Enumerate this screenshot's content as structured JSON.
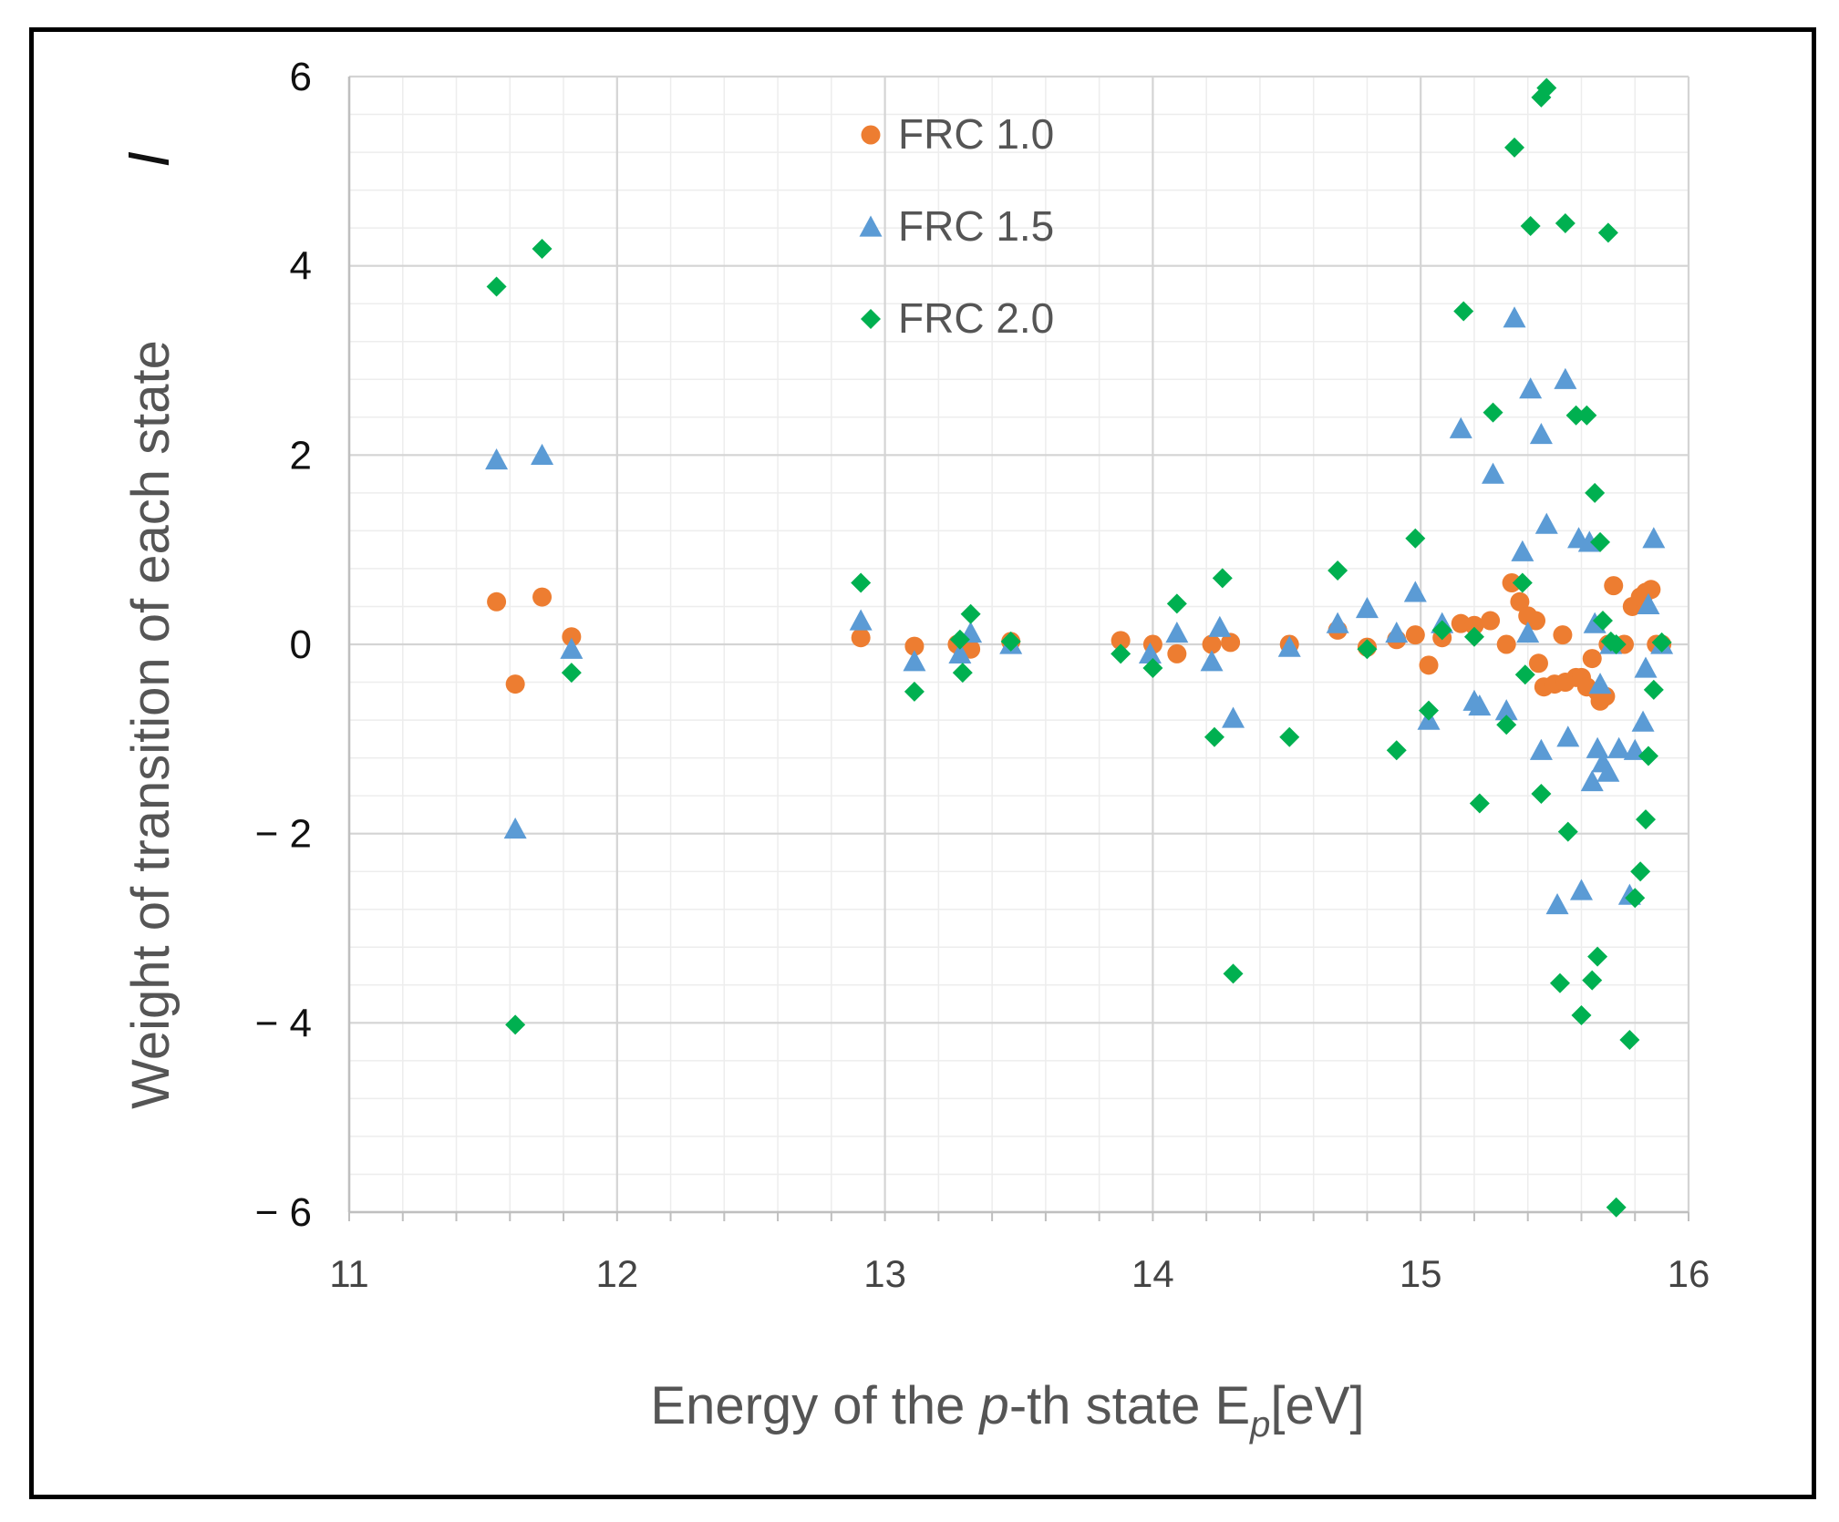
{
  "chart_data": {
    "type": "scatter",
    "title": "",
    "xlabel_parts": [
      "Energy of the ",
      "p",
      "-th state E",
      "p",
      "[eV]"
    ],
    "ylabel": "Weight of transition of each state",
    "ylabel_symbol": "I",
    "xlim": [
      11,
      16
    ],
    "ylim": [
      -6,
      6
    ],
    "xticks": [
      11,
      12,
      13,
      14,
      15,
      16
    ],
    "yticks": [
      -6,
      -4,
      -2,
      0,
      2,
      4,
      6
    ],
    "ytick_labels": [
      "− 6",
      "− 4",
      "− 2",
      "0",
      "2",
      "4",
      "6"
    ],
    "grid": true,
    "legend_position": "top-center",
    "series": [
      {
        "name": "FRC 1.0",
        "marker": "circle",
        "color": "#ED7D31",
        "points": [
          [
            11.55,
            0.45
          ],
          [
            11.62,
            -0.42
          ],
          [
            11.72,
            0.5
          ],
          [
            11.83,
            0.08
          ],
          [
            12.91,
            0.07
          ],
          [
            13.11,
            -0.02
          ],
          [
            13.27,
            0.0
          ],
          [
            13.32,
            -0.05
          ],
          [
            13.47,
            0.03
          ],
          [
            13.88,
            0.04
          ],
          [
            14.0,
            0.0
          ],
          [
            14.09,
            -0.1
          ],
          [
            14.22,
            0.0
          ],
          [
            14.29,
            0.02
          ],
          [
            14.51,
            0.0
          ],
          [
            14.69,
            0.15
          ],
          [
            14.8,
            -0.03
          ],
          [
            14.91,
            0.05
          ],
          [
            14.98,
            0.1
          ],
          [
            15.03,
            -0.22
          ],
          [
            15.08,
            0.07
          ],
          [
            15.15,
            0.22
          ],
          [
            15.2,
            0.2
          ],
          [
            15.26,
            0.25
          ],
          [
            15.32,
            0.0
          ],
          [
            15.34,
            0.65
          ],
          [
            15.37,
            0.45
          ],
          [
            15.4,
            0.3
          ],
          [
            15.43,
            0.25
          ],
          [
            15.44,
            -0.2
          ],
          [
            15.46,
            -0.45
          ],
          [
            15.5,
            -0.42
          ],
          [
            15.53,
            0.1
          ],
          [
            15.54,
            -0.4
          ],
          [
            15.58,
            -0.35
          ],
          [
            15.6,
            -0.35
          ],
          [
            15.62,
            -0.45
          ],
          [
            15.64,
            -0.15
          ],
          [
            15.66,
            -0.5
          ],
          [
            15.67,
            -0.6
          ],
          [
            15.69,
            -0.55
          ],
          [
            15.7,
            0.0
          ],
          [
            15.72,
            0.62
          ],
          [
            15.76,
            0.0
          ],
          [
            15.79,
            0.4
          ],
          [
            15.82,
            0.5
          ],
          [
            15.84,
            0.55
          ],
          [
            15.86,
            0.58
          ],
          [
            15.88,
            0.0
          ],
          [
            15.9,
            0.0
          ]
        ]
      },
      {
        "name": "FRC 1.5",
        "marker": "triangle",
        "color": "#5B9BD5",
        "points": [
          [
            11.55,
            1.95
          ],
          [
            11.62,
            -1.95
          ],
          [
            11.72,
            2.0
          ],
          [
            11.83,
            -0.05
          ],
          [
            12.91,
            0.25
          ],
          [
            13.11,
            -0.18
          ],
          [
            13.28,
            -0.1
          ],
          [
            13.32,
            0.12
          ],
          [
            13.47,
            0.0
          ],
          [
            13.99,
            -0.1
          ],
          [
            14.09,
            0.12
          ],
          [
            14.22,
            -0.18
          ],
          [
            14.25,
            0.18
          ],
          [
            14.3,
            -0.78
          ],
          [
            14.51,
            -0.03
          ],
          [
            14.69,
            0.22
          ],
          [
            14.8,
            0.38
          ],
          [
            14.91,
            0.12
          ],
          [
            14.98,
            0.55
          ],
          [
            15.03,
            -0.8
          ],
          [
            15.08,
            0.22
          ],
          [
            15.15,
            2.28
          ],
          [
            15.2,
            -0.6
          ],
          [
            15.22,
            -0.65
          ],
          [
            15.27,
            1.8
          ],
          [
            15.32,
            -0.7
          ],
          [
            15.35,
            3.45
          ],
          [
            15.38,
            0.98
          ],
          [
            15.4,
            0.12
          ],
          [
            15.41,
            2.7
          ],
          [
            15.45,
            2.22
          ],
          [
            15.45,
            -1.12
          ],
          [
            15.47,
            1.27
          ],
          [
            15.51,
            -2.75
          ],
          [
            15.54,
            2.8
          ],
          [
            15.55,
            -0.98
          ],
          [
            15.59,
            1.12
          ],
          [
            15.6,
            -2.6
          ],
          [
            15.63,
            1.08
          ],
          [
            15.64,
            -1.45
          ],
          [
            15.65,
            0.22
          ],
          [
            15.66,
            -1.1
          ],
          [
            15.67,
            -0.42
          ],
          [
            15.68,
            -1.25
          ],
          [
            15.7,
            -1.35
          ],
          [
            15.71,
            0.0
          ],
          [
            15.74,
            -1.1
          ],
          [
            15.78,
            -2.65
          ],
          [
            15.8,
            -1.12
          ],
          [
            15.83,
            -0.82
          ],
          [
            15.84,
            -0.25
          ],
          [
            15.85,
            0.42
          ],
          [
            15.87,
            1.12
          ],
          [
            15.9,
            0.0
          ]
        ]
      },
      {
        "name": "FRC 2.0",
        "marker": "diamond",
        "color": "#00B050",
        "points": [
          [
            11.55,
            3.78
          ],
          [
            11.62,
            -4.02
          ],
          [
            11.72,
            4.18
          ],
          [
            11.83,
            -0.3
          ],
          [
            12.91,
            0.65
          ],
          [
            13.11,
            -0.5
          ],
          [
            13.28,
            0.05
          ],
          [
            13.29,
            -0.3
          ],
          [
            13.32,
            0.32
          ],
          [
            13.47,
            0.03
          ],
          [
            13.88,
            -0.1
          ],
          [
            14.0,
            -0.25
          ],
          [
            14.09,
            0.43
          ],
          [
            14.23,
            -0.98
          ],
          [
            14.26,
            0.7
          ],
          [
            14.3,
            -3.48
          ],
          [
            14.51,
            -0.98
          ],
          [
            14.69,
            0.78
          ],
          [
            14.8,
            -0.05
          ],
          [
            14.91,
            -1.12
          ],
          [
            14.98,
            1.12
          ],
          [
            15.03,
            -0.7
          ],
          [
            15.08,
            0.15
          ],
          [
            15.16,
            3.52
          ],
          [
            15.2,
            0.08
          ],
          [
            15.22,
            -1.68
          ],
          [
            15.27,
            2.45
          ],
          [
            15.32,
            -0.85
          ],
          [
            15.35,
            5.25
          ],
          [
            15.38,
            0.65
          ],
          [
            15.39,
            -0.32
          ],
          [
            15.41,
            4.42
          ],
          [
            15.45,
            5.78
          ],
          [
            15.45,
            -1.58
          ],
          [
            15.47,
            5.88
          ],
          [
            15.52,
            -3.58
          ],
          [
            15.54,
            4.45
          ],
          [
            15.55,
            -1.98
          ],
          [
            15.58,
            2.42
          ],
          [
            15.6,
            -3.92
          ],
          [
            15.62,
            2.42
          ],
          [
            15.64,
            -3.55
          ],
          [
            15.65,
            1.6
          ],
          [
            15.66,
            -3.3
          ],
          [
            15.67,
            1.08
          ],
          [
            15.68,
            0.25
          ],
          [
            15.7,
            4.35
          ],
          [
            15.71,
            0.03
          ],
          [
            15.73,
            0.0
          ],
          [
            15.73,
            -5.95
          ],
          [
            15.78,
            -4.18
          ],
          [
            15.8,
            -2.68
          ],
          [
            15.82,
            -2.4
          ],
          [
            15.84,
            -1.85
          ],
          [
            15.85,
            -1.18
          ],
          [
            15.87,
            -0.48
          ],
          [
            15.9,
            0.02
          ]
        ]
      }
    ]
  }
}
